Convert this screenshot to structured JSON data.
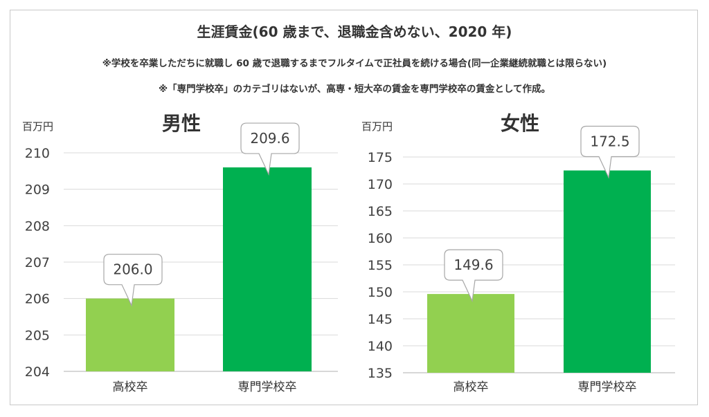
{
  "title": "生涯賃金(60 歳まで、退職金含めない、2020 年)",
  "notes": [
    "※学校を卒業しただちに就職し 60 歳で退職するまでフルタイムで正社員を続ける場合(同一企業継続就職とは限らない)",
    "※「専門学校卒」のカテゴリはないが、高専・短大卒の賃金を専門学校卒の賃金として作成。"
  ],
  "colors": {
    "light_green": "#92d050",
    "dark_green": "#00b050",
    "grid": "#d9d9d9",
    "text": "#404040"
  },
  "chart_data": [
    {
      "type": "bar",
      "title": "男性",
      "unit_label": "百万円",
      "categories": [
        "高校卒",
        "専門学校卒"
      ],
      "values": [
        206.0,
        209.6
      ],
      "value_labels": [
        "206.0",
        "209.6"
      ],
      "ylim": [
        204,
        210
      ],
      "yticks": [
        "204",
        "205",
        "206",
        "207",
        "208",
        "209",
        "210"
      ],
      "grid": true
    },
    {
      "type": "bar",
      "title": "女性",
      "unit_label": "百万円",
      "categories": [
        "高校卒",
        "専門学校卒"
      ],
      "values": [
        149.6,
        172.5
      ],
      "value_labels": [
        "149.6",
        "172.5"
      ],
      "ylim": [
        135,
        175
      ],
      "yticks": [
        "135",
        "140",
        "145",
        "150",
        "155",
        "160",
        "165",
        "170",
        "175"
      ],
      "grid": true
    }
  ]
}
